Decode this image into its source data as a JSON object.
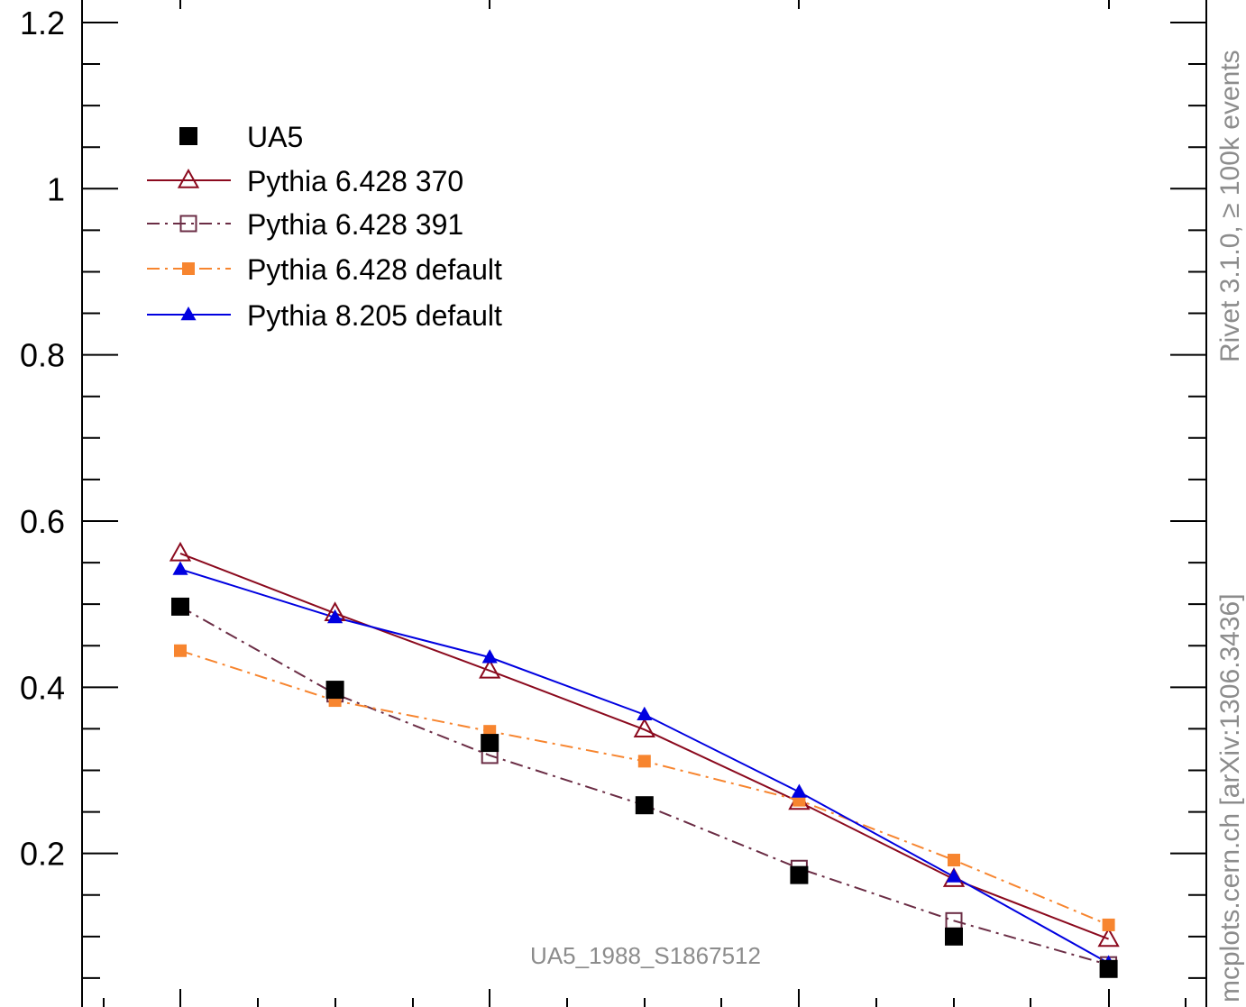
{
  "chart_data": {
    "type": "line",
    "title": "",
    "xlabel": "",
    "ylabel": "",
    "ylim": [
      0,
      1.2
    ],
    "yticks": [
      {
        "value": 0.2,
        "label": "0.2"
      },
      {
        "value": 0.4,
        "label": "0.4"
      },
      {
        "value": 0.6,
        "label": "0.6"
      },
      {
        "value": 0.8,
        "label": "0.8"
      },
      {
        "value": 1.0,
        "label": "1"
      },
      {
        "value": 1.2,
        "label": "1.2"
      }
    ],
    "x": [
      1,
      2,
      3,
      4,
      5,
      6,
      7
    ],
    "legend_position": "top-left",
    "grid": false,
    "series": [
      {
        "name": "UA5",
        "color": "#000000",
        "marker": "filled-square",
        "line": "none",
        "values": [
          0.497,
          0.397,
          0.333,
          0.258,
          0.174,
          0.1,
          0.061
        ]
      },
      {
        "name": "Pythia 6.428 370",
        "color": "#8b0a1e",
        "marker": "open-triangle",
        "line": "solid",
        "values": [
          0.561,
          0.489,
          0.42,
          0.349,
          0.262,
          0.169,
          0.097
        ]
      },
      {
        "name": "Pythia 6.428 391",
        "color": "#6b2d45",
        "marker": "open-square",
        "line": "dashdot",
        "values": [
          0.497,
          0.392,
          0.318,
          0.258,
          0.182,
          0.119,
          0.066
        ]
      },
      {
        "name": "Pythia 6.428 default",
        "color": "#f7852f",
        "marker": "filled-square-small",
        "line": "dashdot",
        "values": [
          0.444,
          0.384,
          0.347,
          0.311,
          0.264,
          0.192,
          0.114
        ]
      },
      {
        "name": "Pythia 8.205 default",
        "color": "#0000e0",
        "marker": "filled-triangle",
        "line": "solid",
        "values": [
          0.542,
          0.484,
          0.436,
          0.367,
          0.274,
          0.172,
          0.068
        ]
      }
    ],
    "annotation": "UA5_1988_S1867512"
  },
  "side_labels": {
    "rivet": "Rivet 3.1.0, ≥ 100k events",
    "mcplots": "mcplots.cern.ch [arXiv:1306.3436]"
  }
}
